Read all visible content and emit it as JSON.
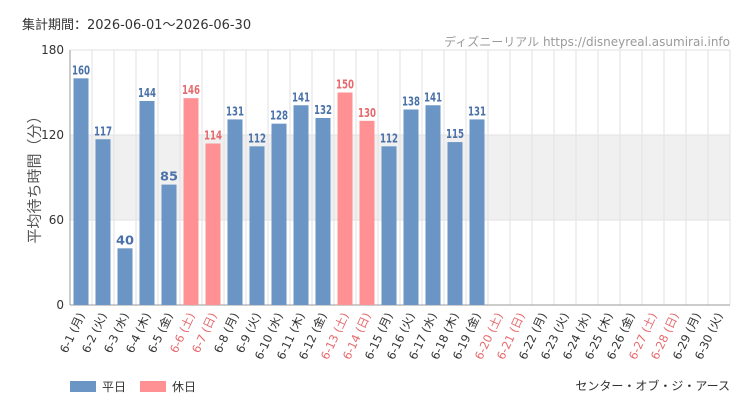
{
  "header": {
    "period": "集計期間：2026-06-01～2026-06-30",
    "watermark": "ディズニーリアル https://disneyreal.asumirai.info"
  },
  "footer": {
    "attraction": "センター・オブ・ジ・アース"
  },
  "colors": {
    "weekday": "#6a95c5",
    "holiday": "#ff9093",
    "holiday_text": "#e66a6e",
    "weekday_text": "#4a72a8",
    "band": "#f0f0f0",
    "grid": "#e2e2e2"
  },
  "chart_data": {
    "type": "bar",
    "ylabel": "平均待ち時間（分）",
    "ylim": [
      0,
      180
    ],
    "yticks": [
      0,
      60,
      120,
      180
    ],
    "band": [
      60,
      120
    ],
    "legend": [
      {
        "name": "平日",
        "color": "#6a95c5"
      },
      {
        "name": "休日",
        "color": "#ff9093"
      }
    ],
    "categories": [
      "6-1 (月)",
      "6-2 (火)",
      "6-3 (水)",
      "6-4 (木)",
      "6-5 (金)",
      "6-6 (土)",
      "6-7 (日)",
      "6-8 (月)",
      "6-9 (火)",
      "6-10 (水)",
      "6-11 (木)",
      "6-12 (金)",
      "6-13 (土)",
      "6-14 (日)",
      "6-15 (月)",
      "6-16 (火)",
      "6-17 (水)",
      "6-18 (木)",
      "6-19 (金)",
      "6-20 (土)",
      "6-21 (日)",
      "6-22 (月)",
      "6-23 (火)",
      "6-24 (水)",
      "6-25 (木)",
      "6-26 (金)",
      "6-27 (土)",
      "6-28 (日)",
      "6-29 (月)",
      "6-30 (火)"
    ],
    "holiday": [
      false,
      false,
      false,
      false,
      false,
      true,
      true,
      false,
      false,
      false,
      false,
      false,
      true,
      true,
      false,
      false,
      false,
      false,
      false,
      true,
      true,
      false,
      false,
      false,
      false,
      false,
      true,
      true,
      false,
      false
    ],
    "values": [
      160,
      117,
      40,
      144,
      85,
      146,
      114,
      131,
      112,
      128,
      141,
      132,
      150,
      130,
      112,
      138,
      141,
      115,
      131,
      null,
      null,
      null,
      null,
      null,
      null,
      null,
      null,
      null,
      null,
      null
    ]
  }
}
